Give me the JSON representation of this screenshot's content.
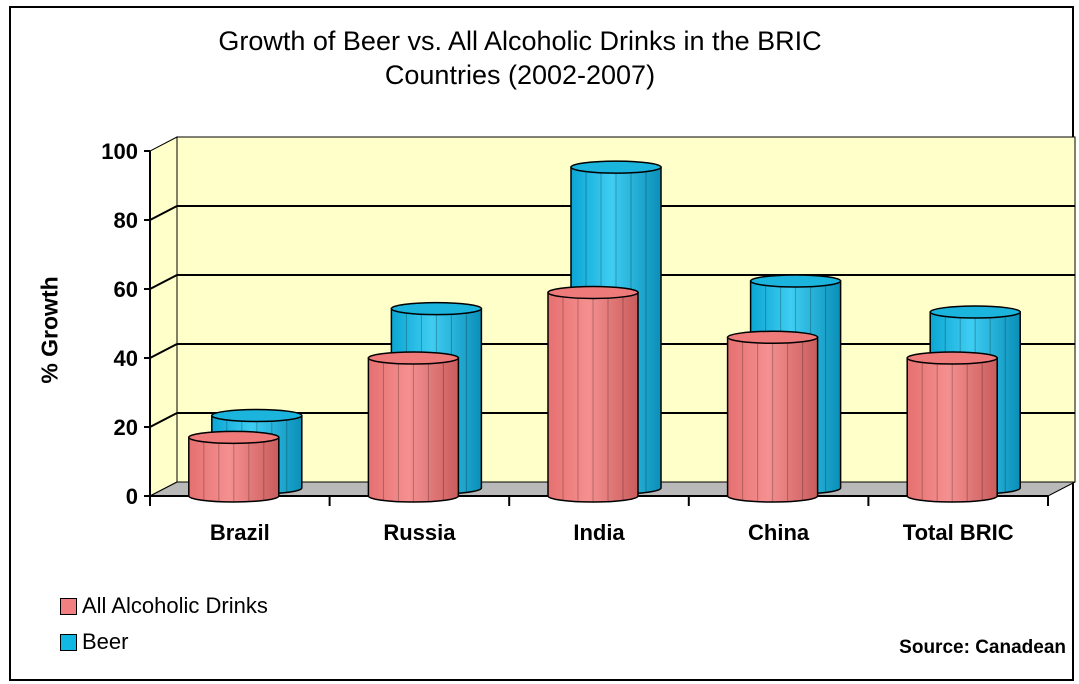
{
  "chart_data": {
    "type": "bar",
    "title_lines": [
      "Growth of Beer vs. All Alcoholic Drinks in the BRIC",
      "Countries (2002-2007)"
    ],
    "ylabel": "% Growth",
    "xlabel": "",
    "categories": [
      "Brazil",
      "Russia",
      "India",
      "China",
      "Total BRIC"
    ],
    "series": [
      {
        "name": "All Alcoholic Drinks",
        "values": [
          17,
          40,
          59,
          46,
          40
        ],
        "color": "#f38080"
      },
      {
        "name": "Beer",
        "values": [
          21,
          52,
          93,
          60,
          51
        ],
        "color": "#12b8e4"
      }
    ],
    "ylim": [
      0,
      100
    ],
    "yticks": [
      "0",
      "20",
      "40",
      "60",
      "80",
      "100"
    ],
    "grid": true,
    "legend_position": "bottom-left",
    "plot_background": "#ffffc9",
    "source": "Source: Canadean"
  }
}
